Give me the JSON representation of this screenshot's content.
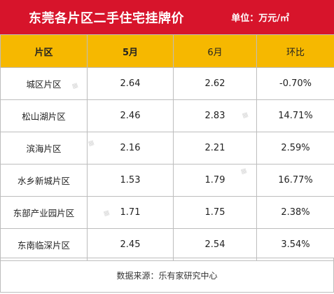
{
  "title": "东莞各片区二手住宅挂牌价",
  "unit": "单位：万元/㎡",
  "headers": [
    "片区",
    "5月",
    "6月",
    "环比"
  ],
  "rows": [
    [
      "城区片区",
      "2.64",
      "2.62",
      "-0.70%"
    ],
    [
      "松山湖片区",
      "2.46",
      "2.83",
      "14.71%"
    ],
    [
      "滨海片区",
      "2.16",
      "2.21",
      "2.59%"
    ],
    [
      "水乡新城片区",
      "1.53",
      "1.79",
      "16.77%"
    ],
    [
      "东部产业园片区",
      "1.71",
      "1.75",
      "2.38%"
    ],
    [
      "东南临深片区",
      "2.45",
      "2.54",
      "3.54%"
    ]
  ],
  "source": "数据来源：乐有家研究中心",
  "colors": {
    "title_bg": "#d7142b",
    "header_bg": "#f6b800"
  }
}
